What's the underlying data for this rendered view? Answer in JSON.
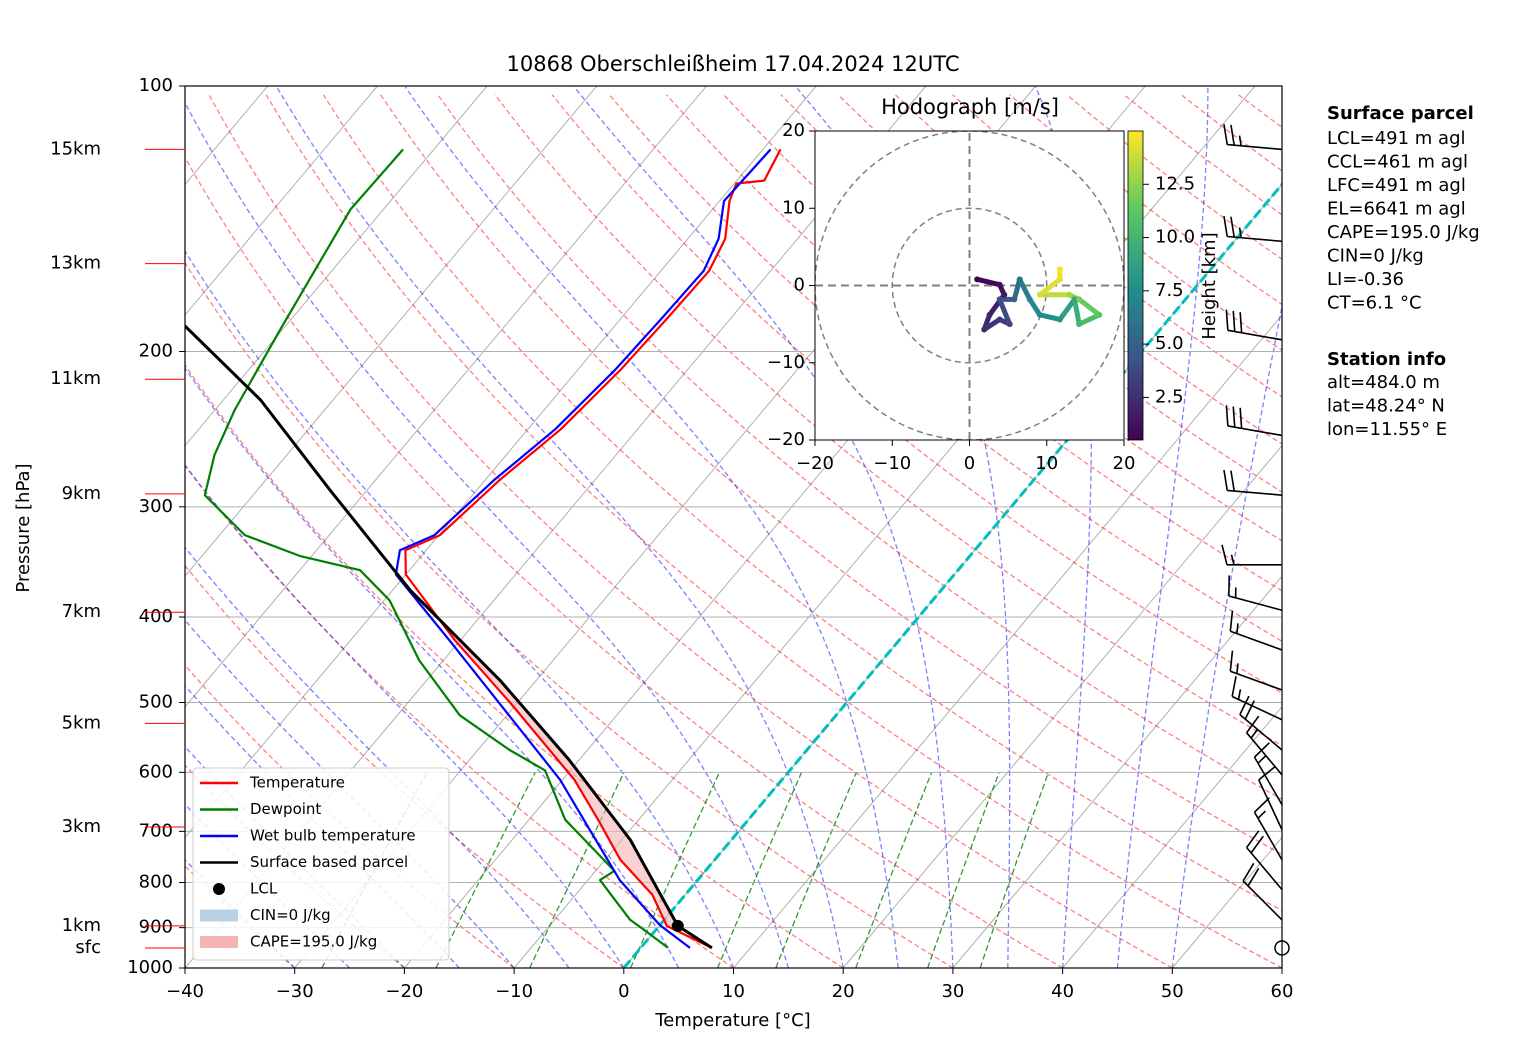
{
  "chart_data": {
    "type": "skewt",
    "title": "10868 Oberschleißheim 17.04.2024 12UTC",
    "xlabel": "Temperature [°C]",
    "ylabel": "Pressure [hPa]",
    "xlim": [
      -40,
      60
    ],
    "ylim": [
      1000,
      100
    ],
    "log_y": true,
    "grid": true,
    "xticks": [
      {
        "value": -40,
        "label": "−40"
      },
      {
        "value": -30,
        "label": "−30"
      },
      {
        "value": -20,
        "label": "−20"
      },
      {
        "value": -10,
        "label": "−10"
      },
      0,
      10,
      20,
      30,
      40,
      50,
      60
    ],
    "yticks": [
      100,
      200,
      300,
      400,
      500,
      600,
      700,
      800,
      900,
      1000
    ],
    "background": {
      "isotherms": [
        -110,
        -100,
        -90,
        -80,
        -70,
        -60,
        -50,
        -40,
        -30,
        -20,
        -10,
        0,
        10,
        20,
        30,
        40,
        50,
        60
      ],
      "zero_isotherm": 0,
      "zero_isotherm_color": "#00bfbf",
      "dry_adiabats": [
        -30,
        -20,
        -10,
        0,
        10,
        20,
        30,
        40,
        50,
        60,
        70,
        80,
        90,
        100,
        110,
        120,
        130,
        140,
        150,
        160,
        170,
        180,
        190,
        200,
        210,
        220,
        230,
        240
      ],
      "moist_adiabats": [
        -30,
        -25,
        -20,
        -15,
        -10,
        -5,
        0,
        5,
        10,
        15,
        20,
        25,
        30,
        35,
        40,
        45,
        50
      ],
      "mixing_ratio_lines": [
        0.4,
        1,
        2,
        4,
        7,
        10,
        16,
        24,
        32
      ]
    },
    "series": [
      {
        "name": "Temperature",
        "color": "#ff0000",
        "pressure": [
          949,
          896,
          826,
          754,
          679,
          612,
          500,
          425,
          358,
          336,
          323,
          280,
          245,
          210,
          184,
          162,
          149,
          135,
          129,
          128,
          118
        ],
        "values": [
          6.5,
          0.7,
          -3.0,
          -8.6,
          -13.7,
          -18.9,
          -30.7,
          -40.5,
          -50.0,
          -51.9,
          -49.9,
          -48.7,
          -47.0,
          -46.1,
          -45.8,
          -45.6,
          -46.6,
          -49.1,
          -49.8,
          -47.5,
          -48.4
        ]
      },
      {
        "name": "Dewpoint",
        "color": "#008000",
        "pressure": [
          949,
          906,
          882,
          795,
          776,
          735,
          679,
          597,
          566,
          517,
          448,
          383,
          354,
          341,
          323,
          291,
          262,
          233,
          189,
          138,
          118
        ],
        "values": [
          2.5,
          -1.0,
          -3.1,
          -8.9,
          -8.3,
          -11.7,
          -16.7,
          -22.3,
          -27.1,
          -34.3,
          -42.2,
          -49.5,
          -54.5,
          -61.1,
          -67.7,
          -74.4,
          -76.6,
          -78.2,
          -80.2,
          -83.0,
          -82.8
        ]
      },
      {
        "name": "Wet bulb temperature",
        "color": "#0000ff",
        "pressure": [
          949,
          894,
          795,
          697,
          612,
          510,
          425,
          358,
          336,
          323,
          280,
          245,
          210,
          184,
          162,
          149,
          135,
          118
        ],
        "values": [
          4.5,
          0.0,
          -7.1,
          -13.7,
          -20.2,
          -30.6,
          -41.0,
          -50.9,
          -52.4,
          -50.4,
          -49.2,
          -47.5,
          -46.6,
          -46.3,
          -46.1,
          -47.2,
          -49.6,
          -49.3
        ]
      },
      {
        "name": "Surface based parcel",
        "color": "#000000",
        "pressure": [
          949,
          896,
          716,
          581,
          472,
          373,
          287,
          227,
          187
        ],
        "values": [
          6.5,
          1.7,
          -9.2,
          -20.9,
          -33.3,
          -48.4,
          -63.4,
          -76.6,
          -89.2
        ]
      }
    ],
    "lcl": {
      "name": "LCL",
      "pressure": 896,
      "value": 1.7,
      "color": "#000000"
    },
    "shading": [
      {
        "name": "CIN=0 J/kg",
        "color": "#b9cfe4"
      },
      {
        "name": "CAPE=195.0 J/kg",
        "color": "#f4b4b4"
      }
    ],
    "height_labels": [
      {
        "label": "15km",
        "pressure": 118
      },
      {
        "label": "13km",
        "pressure": 159
      },
      {
        "label": "11km",
        "pressure": 215
      },
      {
        "label": "9km",
        "pressure": 290
      },
      {
        "label": "7km",
        "pressure": 395
      },
      {
        "label": "5km",
        "pressure": 528
      },
      {
        "label": "3km",
        "pressure": 692
      },
      {
        "label": "1km",
        "pressure": 896
      },
      {
        "label": "sfc",
        "pressure": 949
      }
    ],
    "height_label_color": "#ff0000",
    "wind_barbs": {
      "pressure": [
        118,
        150,
        194,
        249,
        291,
        349,
        393,
        436,
        484,
        523,
        566,
        604,
        653,
        697,
        754,
        815,
        882,
        949
      ],
      "speed": [
        25,
        25,
        30,
        30,
        20,
        15,
        15,
        15,
        15,
        15,
        20,
        15,
        15,
        10,
        15,
        20,
        20,
        0
      ],
      "direction": [
        275,
        275,
        280,
        280,
        275,
        270,
        285,
        290,
        290,
        295,
        310,
        320,
        330,
        335,
        330,
        320,
        315,
        0
      ]
    },
    "hodograph": {
      "title": "Hodograph [m/s]",
      "xlim": [
        -20,
        20
      ],
      "ylim": [
        -20,
        20
      ],
      "xticks": [
        {
          "value": -20,
          "label": "−20"
        },
        {
          "value": -10,
          "label": "−10"
        },
        0,
        10,
        20
      ],
      "yticks": [
        {
          "value": -20,
          "label": "−20"
        },
        {
          "value": -10,
          "label": "−10"
        },
        0,
        10,
        20
      ],
      "rings": [
        10,
        20
      ],
      "u": [
        1.0,
        3.9,
        4.5,
        2.6,
        1.9,
        3.9,
        5.2,
        3.9,
        5.8,
        6.5,
        7.8,
        9.1,
        11.7,
        13.6,
        14.2,
        16.8,
        14.2,
        12.9,
        9.1,
        11.7,
        11.7
      ],
      "v": [
        0.8,
        0.1,
        -1.2,
        -3.8,
        -5.7,
        -4.4,
        -5.0,
        -1.8,
        -1.8,
        0.8,
        -1.8,
        -3.8,
        -4.4,
        -1.8,
        -5.0,
        -3.8,
        -1.8,
        -1.2,
        -1.2,
        0.8,
        2.1
      ],
      "height": [
        0.5,
        1,
        1.5,
        2,
        2.5,
        3,
        3.5,
        4,
        5,
        6,
        7,
        7.5,
        8,
        9,
        10,
        11,
        12,
        13,
        14,
        14.5,
        14.8
      ],
      "colorbar": {
        "label": "Height [km]",
        "lim": [
          0.5,
          15.0
        ],
        "ticks": [
          2.5,
          {
            "value": 5,
            "label": "5.0"
          },
          7.5,
          {
            "value": 10,
            "label": "10.0"
          },
          12.5
        ]
      }
    },
    "info": {
      "surface_title": "Surface parcel",
      "surface_lines": [
        "LCL=491 m agl",
        "CCL=461 m agl",
        "LFC=491 m agl",
        "EL=6641 m agl",
        "CAPE=195.0 J/kg",
        "CIN=0 J/kg",
        "LI=-0.36",
        "CT=6.1 °C"
      ],
      "station_title": "Station info",
      "station_lines": [
        "alt=484.0 m",
        "lat=48.24° N",
        "lon=11.55° E"
      ]
    }
  }
}
